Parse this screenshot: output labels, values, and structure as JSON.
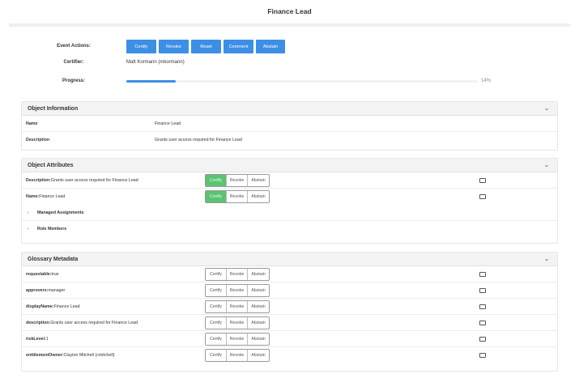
{
  "header": {
    "title": "Finance Lead"
  },
  "event": {
    "label": "Event Actions:",
    "buttons": [
      "Certify",
      "Revoke",
      "Reset",
      "Comment",
      "Abstain"
    ]
  },
  "certifier": {
    "label": "Certifier:",
    "value": "Matt Kormann (mkormann)"
  },
  "progress": {
    "label": "Progress:",
    "percent": 14,
    "text": "14%"
  },
  "object_information": {
    "title": "Object Information",
    "rows": [
      {
        "key": "Name",
        "value": "Finance Lead"
      },
      {
        "key": "Description",
        "value": "Grants user access required for Finance Lead"
      }
    ]
  },
  "object_attributes": {
    "title": "Object Attributes",
    "rows": [
      {
        "key": "Description:",
        "value": " Grants user access required for Finance Lead",
        "decision": "Certify"
      },
      {
        "key": "Name:",
        "value": " Finance Lead",
        "decision": "Certify"
      }
    ],
    "expanders": [
      "Managed Assignments",
      "Role Members"
    ]
  },
  "glossary": {
    "title": "Glossary Metadata",
    "rows": [
      {
        "key": "requestable:",
        "value": " true"
      },
      {
        "key": "approvers:",
        "value": " manager"
      },
      {
        "key": "displayName:",
        "value": " Finance Lead"
      },
      {
        "key": "description:",
        "value": " Grants user access required for Finance Lead"
      },
      {
        "key": "riskLevel:",
        "value": " 1"
      },
      {
        "key": "entitlementOwner:",
        "value": " Clayton Mitchell (cmitchell)"
      }
    ]
  },
  "decision_labels": [
    "Certify",
    "Revoke",
    "Abstain"
  ],
  "colors": {
    "primary": "#3d8fe6",
    "certified": "#5bc373"
  }
}
